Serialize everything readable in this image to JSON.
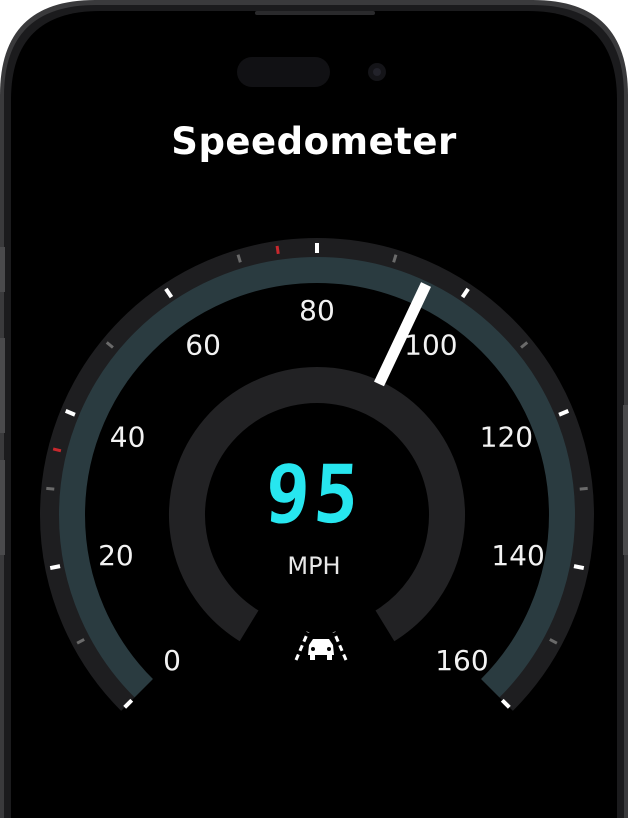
{
  "screen": {
    "title": "Speedometer"
  },
  "gauge": {
    "speed": "95",
    "speed_value": 95,
    "unit": "MPH",
    "min": 0,
    "max": 160,
    "scale_labels": [
      "0",
      "20",
      "40",
      "60",
      "80",
      "100",
      "120",
      "140",
      "160"
    ],
    "lane_assist_icon": "lane-assist-icon"
  },
  "colors": {
    "accent": "#27e6ef",
    "arc_track": "#2a3b40",
    "needle": "#ffffff",
    "warning_tick": "#c8282d"
  }
}
